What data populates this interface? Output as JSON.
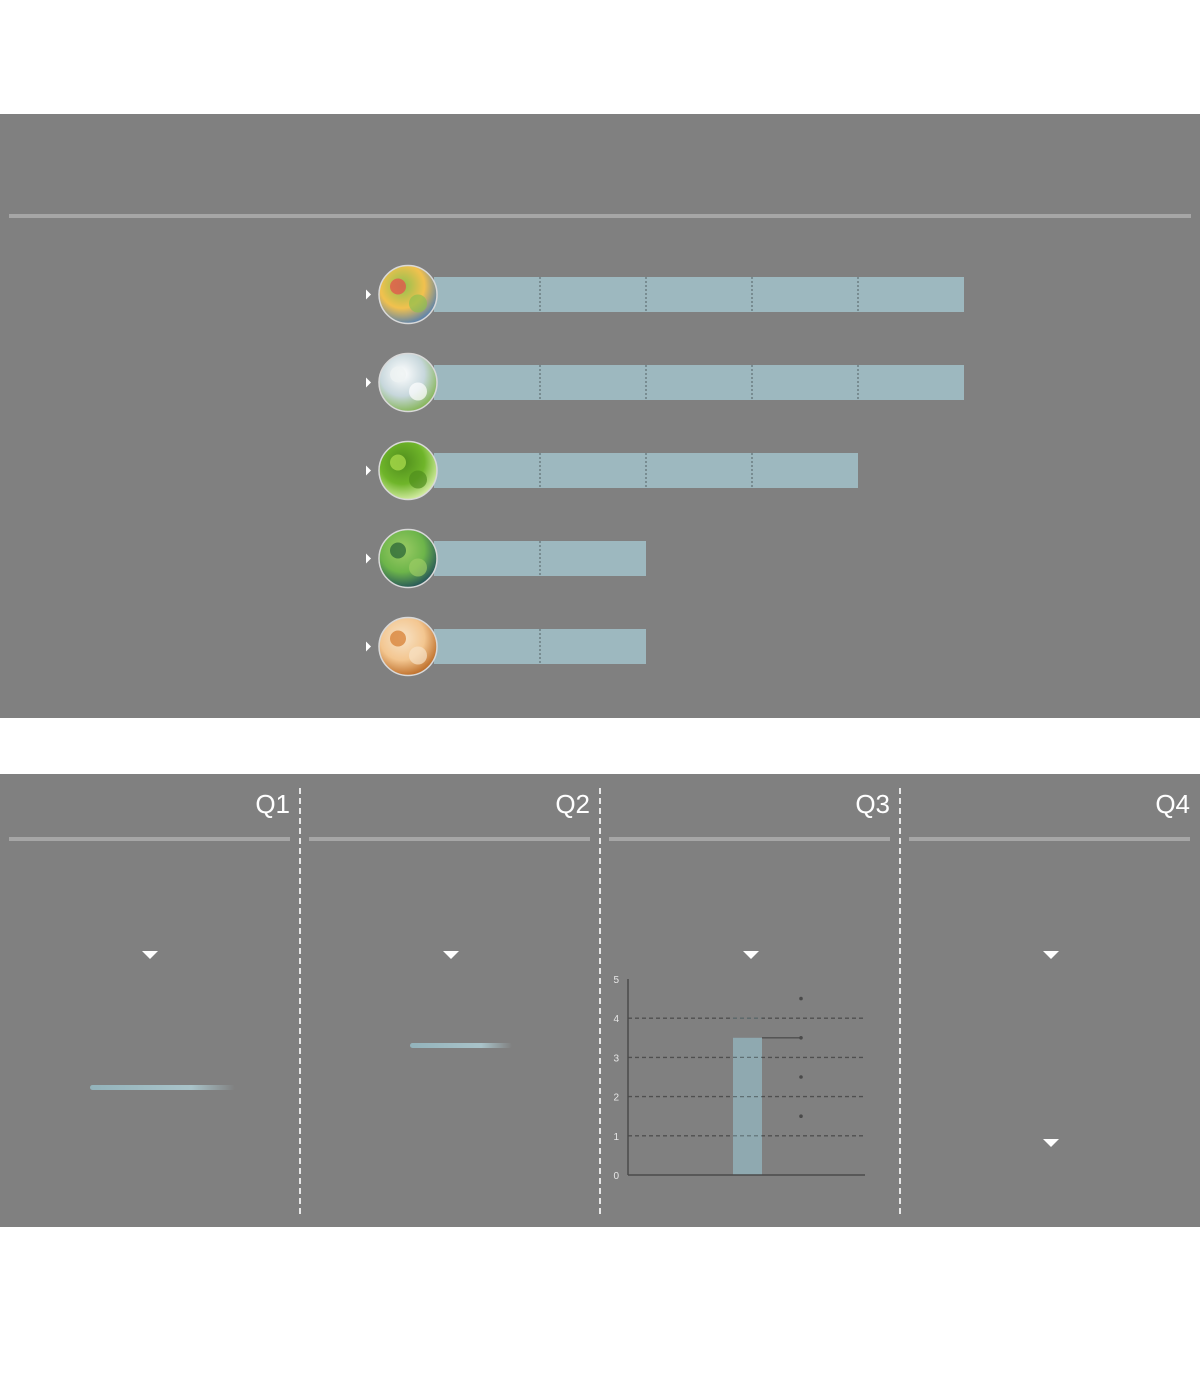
{
  "chart_data": [
    {
      "type": "bar",
      "orientation": "horizontal",
      "categories": [
        "fruit-salad-image",
        "lime-water-image",
        "cucumber-slice-image",
        "green-leaf-image",
        "honey-jar-image"
      ],
      "values": [
        5,
        5,
        4,
        2,
        2
      ],
      "xlim": [
        0,
        5
      ],
      "segment_step": 1,
      "bar_color": "#9db8bf",
      "background": "#808080",
      "grid": false
    },
    {
      "type": "bar",
      "panel_label": "Q3",
      "y_tick_labels": [
        "0",
        "1",
        "2",
        "3",
        "4",
        "5"
      ],
      "ylim": [
        0,
        5
      ],
      "values": [
        3.5
      ],
      "bar_color": "#8fa9b0",
      "grid": true,
      "grid_style": "dashed",
      "markers": [
        4.5,
        3.5,
        2.5,
        1.5
      ]
    }
  ],
  "quarters": [
    {
      "label": "Q1"
    },
    {
      "label": "Q2"
    },
    {
      "label": "Q3"
    },
    {
      "label": "Q4"
    }
  ],
  "colors": {
    "panel": "#808080",
    "rule": "#a6a6a6",
    "bar": "#9db8bf",
    "text": "#ffffff"
  }
}
